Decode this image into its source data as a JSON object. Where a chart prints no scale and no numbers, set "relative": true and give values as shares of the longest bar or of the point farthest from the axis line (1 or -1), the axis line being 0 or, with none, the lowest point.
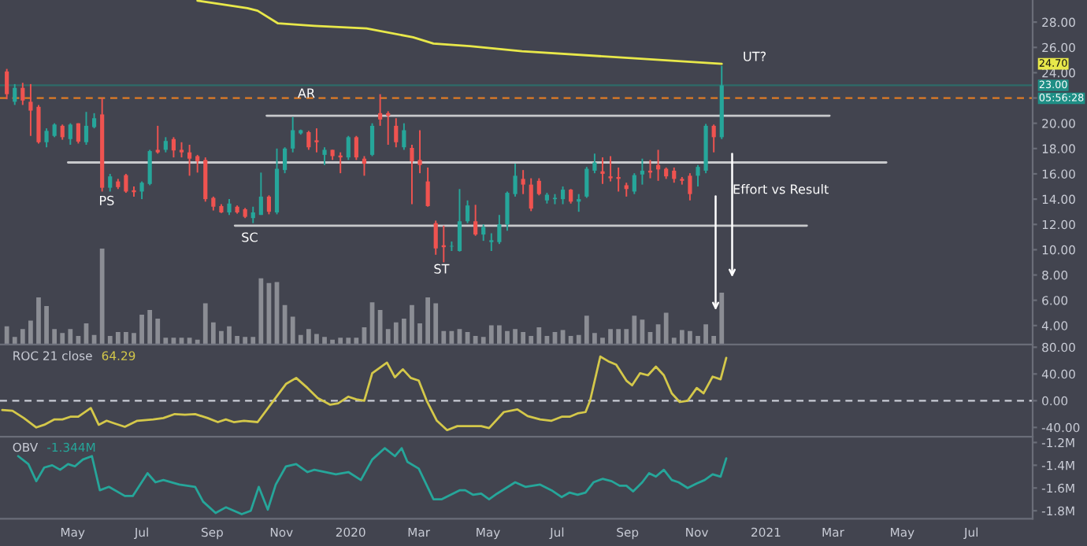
{
  "chart_data": [
    {
      "type": "candlestick",
      "x": [
        "2019-03-04",
        "2019-03-11",
        "2019-03-18",
        "2019-03-25",
        "2019-04-01",
        "2019-04-08",
        "2019-04-15",
        "2019-04-22",
        "2019-04-29",
        "2019-05-06",
        "2019-05-13",
        "2019-05-20",
        "2019-05-27",
        "2019-06-03",
        "2019-06-10",
        "2019-06-17",
        "2019-06-24",
        "2019-07-01",
        "2019-07-08",
        "2019-07-15",
        "2019-07-22",
        "2019-07-29",
        "2019-08-05",
        "2019-08-12",
        "2019-08-19",
        "2019-08-26",
        "2019-09-02",
        "2019-09-09",
        "2019-09-16",
        "2019-09-23",
        "2019-09-30",
        "2019-10-07",
        "2019-10-14",
        "2019-10-21",
        "2019-10-28",
        "2019-11-04",
        "2019-11-11",
        "2019-11-18",
        "2019-11-25",
        "2019-12-02",
        "2019-12-09",
        "2019-12-16",
        "2019-12-23",
        "2019-12-30",
        "2020-01-06",
        "2020-01-13",
        "2020-01-20",
        "2020-01-27",
        "2020-02-03",
        "2020-02-10",
        "2020-02-17",
        "2020-02-24",
        "2020-03-02",
        "2020-03-09",
        "2020-03-16",
        "2020-03-23",
        "2020-03-30",
        "2020-04-06",
        "2020-04-13",
        "2020-04-20",
        "2020-04-27",
        "2020-05-04",
        "2020-05-11",
        "2020-05-18",
        "2020-05-25",
        "2020-06-01",
        "2020-06-08",
        "2020-06-15",
        "2020-06-22",
        "2020-06-29",
        "2020-07-06",
        "2020-07-13",
        "2020-07-20",
        "2020-07-27",
        "2020-08-03",
        "2020-08-10",
        "2020-08-17",
        "2020-08-24",
        "2020-08-31",
        "2020-09-07",
        "2020-09-14",
        "2020-09-21",
        "2020-09-28",
        "2020-10-05",
        "2020-10-12",
        "2020-10-19",
        "2020-10-26",
        "2020-11-02",
        "2020-11-09",
        "2020-11-16",
        "2020-11-23"
      ],
      "ohlc": [
        [
          24.1,
          24.3,
          21.9,
          22.3
        ],
        [
          21.7,
          23.1,
          21.45,
          22.8
        ],
        [
          22.8,
          23.2,
          21.45,
          21.8
        ],
        [
          21.7,
          23.1,
          19.0,
          21.0
        ],
        [
          21.3,
          21.45,
          18.4,
          18.5
        ],
        [
          18.5,
          19.6,
          18.1,
          19.4
        ],
        [
          19.0,
          20.0,
          18.9,
          19.9
        ],
        [
          19.8,
          19.9,
          18.7,
          18.9
        ],
        [
          18.75,
          20.0,
          18.3,
          19.9
        ],
        [
          20.0,
          20.0,
          18.4,
          18.55
        ],
        [
          18.5,
          20.9,
          18.3,
          19.8
        ],
        [
          19.7,
          20.8,
          19.6,
          20.4
        ],
        [
          20.7,
          22.0,
          14.6,
          14.9
        ],
        [
          14.9,
          16.0,
          14.6,
          15.8
        ],
        [
          15.4,
          15.6,
          14.8,
          14.95
        ],
        [
          15.9,
          16.0,
          14.5,
          14.6
        ],
        [
          14.7,
          15.0,
          14.2,
          14.55
        ],
        [
          14.6,
          15.4,
          14.0,
          15.3
        ],
        [
          15.2,
          17.9,
          15.1,
          17.8
        ],
        [
          17.9,
          19.8,
          17.6,
          17.7
        ],
        [
          17.9,
          18.9,
          17.7,
          18.6
        ],
        [
          18.75,
          18.9,
          17.3,
          17.85
        ],
        [
          17.9,
          18.5,
          17.3,
          17.7
        ],
        [
          17.7,
          18.3,
          15.85,
          17.2
        ],
        [
          17.4,
          17.5,
          16.1,
          17.0
        ],
        [
          17.1,
          17.3,
          13.8,
          14.0
        ],
        [
          14.1,
          14.2,
          13.1,
          13.4
        ],
        [
          13.45,
          13.6,
          12.9,
          12.95
        ],
        [
          12.95,
          14.0,
          12.75,
          13.65
        ],
        [
          13.4,
          13.5,
          12.85,
          12.95
        ],
        [
          13.2,
          13.3,
          12.5,
          12.6
        ],
        [
          12.5,
          13.4,
          12.1,
          12.95
        ],
        [
          12.75,
          16.1,
          12.75,
          14.2
        ],
        [
          14.2,
          14.3,
          12.8,
          13.0
        ],
        [
          12.95,
          18.0,
          12.8,
          16.4
        ],
        [
          16.3,
          18.1,
          16.05,
          18.0
        ],
        [
          18.0,
          20.5,
          17.7,
          19.45
        ],
        [
          19.2,
          19.5,
          19.1,
          19.45
        ],
        [
          19.3,
          19.4,
          17.9,
          18.1
        ],
        [
          18.65,
          19.6,
          17.7,
          18.5
        ],
        [
          17.5,
          18.1,
          16.7,
          17.9
        ],
        [
          17.9,
          17.9,
          17.1,
          17.4
        ],
        [
          17.45,
          17.7,
          16.05,
          17.3
        ],
        [
          17.3,
          19.0,
          17.1,
          18.9
        ],
        [
          18.9,
          19.0,
          17.1,
          17.3
        ],
        [
          17.2,
          17.4,
          15.85,
          16.8
        ],
        [
          17.5,
          20.0,
          17.4,
          19.8
        ],
        [
          20.8,
          22.3,
          19.8,
          20.3
        ],
        [
          20.8,
          20.95,
          18.3,
          20.6
        ],
        [
          19.8,
          20.4,
          18.1,
          18.5
        ],
        [
          18.1,
          20.0,
          17.9,
          19.45
        ],
        [
          18.05,
          18.3,
          13.6,
          17.0
        ],
        [
          17.1,
          19.45,
          16.05,
          16.7
        ],
        [
          15.4,
          16.5,
          13.4,
          13.45
        ],
        [
          12.1,
          12.3,
          9.6,
          10.1
        ],
        [
          10.35,
          11.9,
          9.0,
          10.2
        ],
        [
          10.25,
          10.65,
          9.9,
          10.3
        ],
        [
          9.9,
          14.8,
          9.85,
          12.25
        ],
        [
          12.25,
          13.9,
          12.1,
          13.5
        ],
        [
          12.25,
          13.55,
          11.1,
          11.2
        ],
        [
          11.2,
          12.0,
          10.7,
          11.8
        ],
        [
          10.6,
          11.3,
          9.9,
          10.75
        ],
        [
          10.6,
          12.75,
          10.45,
          12.0
        ],
        [
          12.0,
          14.6,
          11.5,
          14.5
        ],
        [
          14.4,
          16.8,
          14.2,
          15.85
        ],
        [
          15.6,
          16.3,
          14.4,
          15.15
        ],
        [
          15.15,
          15.65,
          13.05,
          13.25
        ],
        [
          15.45,
          15.65,
          14.3,
          14.4
        ],
        [
          13.9,
          14.5,
          13.65,
          14.35
        ],
        [
          14.0,
          14.4,
          13.6,
          14.1
        ],
        [
          14.0,
          15.0,
          13.6,
          14.75
        ],
        [
          14.75,
          14.8,
          13.65,
          13.8
        ],
        [
          13.8,
          14.4,
          13.0,
          14.0
        ],
        [
          14.2,
          16.55,
          14.1,
          16.4
        ],
        [
          16.25,
          17.6,
          16.05,
          16.9
        ],
        [
          16.2,
          17.3,
          15.2,
          16.0
        ],
        [
          15.8,
          17.4,
          15.4,
          15.65
        ],
        [
          15.75,
          16.5,
          14.6,
          15.6
        ],
        [
          15.1,
          15.3,
          14.2,
          14.8
        ],
        [
          14.6,
          16.05,
          14.4,
          15.9
        ],
        [
          15.95,
          17.2,
          15.15,
          16.25
        ],
        [
          16.25,
          17.1,
          15.65,
          16.1
        ],
        [
          16.7,
          17.9,
          15.45,
          16.35
        ],
        [
          16.4,
          16.5,
          15.6,
          15.8
        ],
        [
          16.25,
          16.5,
          15.3,
          15.6
        ],
        [
          15.6,
          15.75,
          15.15,
          15.45
        ],
        [
          15.85,
          16.05,
          13.9,
          14.4
        ],
        [
          15.85,
          16.7,
          15.0,
          16.55
        ],
        [
          16.25,
          19.95,
          16.05,
          19.8
        ],
        [
          19.8,
          19.9,
          17.7,
          18.9
        ],
        [
          18.9,
          24.55,
          18.75,
          23.0
        ]
      ],
      "series": [
        {
          "type": "line",
          "color": "#e8e84a",
          "x": [
            "2019-08-19",
            "2019-10-02",
            "2019-10-11",
            "2019-10-29",
            "2019-11-30",
            "2020-01-15",
            "2020-02-25",
            "2020-03-14",
            "2020-04-15",
            "2020-05-31",
            "2020-11-23"
          ],
          "values": [
            29.7,
            29.1,
            28.9,
            27.9,
            27.7,
            27.5,
            26.8,
            26.3,
            26.1,
            25.7,
            24.7
          ]
        },
        {
          "type": "line",
          "color": "#c8c9cc",
          "x": [
            "2019-10-19",
            "2021-02-26"
          ],
          "values": [
            20.6,
            20.6
          ]
        },
        {
          "type": "line",
          "color": "#c8c9cc",
          "x": [
            "2019-04-27",
            "2021-04-17"
          ],
          "values": [
            16.9,
            16.9
          ]
        },
        {
          "type": "line",
          "color": "#c8c9cc",
          "x": [
            "2019-09-21",
            "2021-02-06"
          ],
          "values": [
            11.9,
            11.9
          ]
        }
      ],
      "ref_lines": [
        {
          "axis": "y",
          "value": 23.0,
          "label": "23.00",
          "color": "#2e6b68",
          "line_style": "solid"
        },
        {
          "axis": "y",
          "value": 22.0,
          "color": "#e07b24",
          "line_style": "dashed"
        }
      ],
      "annotations": [
        {
          "text": "AR",
          "x": "2019-11-23",
          "y": 22.3
        },
        "PS",
        "SC",
        "ST",
        "UT?",
        "Effort vs Result",
        "05:56:28",
        "24.70"
      ],
      "xlim": [
        "2019-02-26",
        "2021-08-24"
      ],
      "ylim": [
        2.5,
        29.75
      ],
      "yticks": [
        {
          "value": 4,
          "label": "4.00"
        },
        {
          "value": 6,
          "label": "6.00"
        },
        {
          "value": 8,
          "label": "8.00"
        },
        {
          "value": 10,
          "label": "10.00"
        },
        {
          "value": 12,
          "label": "12.00"
        },
        {
          "value": 14,
          "label": "14.00"
        },
        {
          "value": 16,
          "label": "16.00"
        },
        {
          "value": 18,
          "label": "18.00"
        },
        {
          "value": 20,
          "label": "20.00"
        },
        {
          "value": 22,
          "label": null
        },
        {
          "value": 24,
          "label": "24.00"
        },
        {
          "value": 26,
          "label": "26.00"
        },
        {
          "value": 28,
          "label": "28.00"
        }
      ],
      "tick_labels": "y"
    },
    {
      "type": "bar",
      "relative": true,
      "color": "#8b8d94",
      "tick_labels": false,
      "xlim": [
        "2019-02-26",
        "2021-08-24"
      ],
      "x": [
        "2019-03-04",
        "2019-03-11",
        "2019-03-18",
        "2019-03-25",
        "2019-04-01",
        "2019-04-08",
        "2019-04-15",
        "2019-04-22",
        "2019-04-29",
        "2019-05-06",
        "2019-05-13",
        "2019-05-20",
        "2019-05-27",
        "2019-06-03",
        "2019-06-10",
        "2019-06-17",
        "2019-06-24",
        "2019-07-01",
        "2019-07-08",
        "2019-07-15",
        "2019-07-22",
        "2019-07-29",
        "2019-08-05",
        "2019-08-12",
        "2019-08-19",
        "2019-08-26",
        "2019-09-02",
        "2019-09-09",
        "2019-09-16",
        "2019-09-23",
        "2019-09-30",
        "2019-10-07",
        "2019-10-14",
        "2019-10-21",
        "2019-10-28",
        "2019-11-04",
        "2019-11-11",
        "2019-11-18",
        "2019-11-25",
        "2019-12-02",
        "2019-12-09",
        "2019-12-16",
        "2019-12-23",
        "2019-12-30",
        "2020-01-06",
        "2020-01-13",
        "2020-01-20",
        "2020-01-27",
        "2020-02-03",
        "2020-02-10",
        "2020-02-17",
        "2020-02-24",
        "2020-03-02",
        "2020-03-09",
        "2020-03-16",
        "2020-03-23",
        "2020-03-30",
        "2020-04-06",
        "2020-04-13",
        "2020-04-20",
        "2020-04-27",
        "2020-05-04",
        "2020-05-11",
        "2020-05-18",
        "2020-05-25",
        "2020-06-01",
        "2020-06-08",
        "2020-06-15",
        "2020-06-22",
        "2020-06-29",
        "2020-07-06",
        "2020-07-13",
        "2020-07-20",
        "2020-07-27",
        "2020-08-03",
        "2020-08-10",
        "2020-08-17",
        "2020-08-24",
        "2020-08-31",
        "2020-09-07",
        "2020-09-14",
        "2020-09-21",
        "2020-09-28",
        "2020-10-05",
        "2020-10-12",
        "2020-10-19",
        "2020-10-26",
        "2020-11-02",
        "2020-11-09",
        "2020-11-16",
        "2020-11-23"
      ],
      "values": [
        0.19,
        0.08,
        0.16,
        0.25,
        0.49,
        0.4,
        0.16,
        0.12,
        0.16,
        0.09,
        0.22,
        0.1,
        1,
        0.09,
        0.13,
        0.13,
        0.12,
        0.31,
        0.36,
        0.27,
        0.07,
        0.07,
        0.07,
        0.07,
        0.05,
        0.43,
        0.23,
        0.14,
        0.19,
        0.09,
        0.08,
        0.08,
        0.69,
        0.64,
        0.65,
        0.41,
        0.29,
        0.1,
        0.16,
        0.11,
        0.08,
        0.05,
        0.07,
        0.07,
        0.07,
        0.18,
        0.44,
        0.36,
        0.16,
        0.23,
        0.27,
        0.41,
        0.22,
        0.49,
        0.43,
        0.14,
        0.14,
        0.16,
        0.13,
        0.09,
        0.08,
        0.2,
        0.2,
        0.14,
        0.16,
        0.13,
        0.09,
        0.18,
        0.09,
        0.13,
        0.15,
        0.09,
        0.1,
        0.3,
        0.12,
        0.07,
        0.16,
        0.16,
        0.16,
        0.3,
        0.26,
        0.13,
        0.21,
        0.33,
        0.07,
        0.15,
        0.14,
        0.09,
        0.21,
        0.09,
        0.54
      ]
    },
    {
      "type": "line",
      "title": "ROC 21 close",
      "annotations": [
        "64.29"
      ],
      "series": [
        {
          "color": "#d4c84a",
          "x": [
            "2019-02-28",
            "2019-03-09",
            "2019-03-19",
            "2019-03-30",
            "2019-04-06",
            "2019-04-15",
            "2019-04-22",
            "2019-04-29",
            "2019-05-06",
            "2019-05-17",
            "2019-05-24",
            "2019-05-31",
            "2019-06-07",
            "2019-06-16",
            "2019-06-27",
            "2019-07-11",
            "2019-07-20",
            "2019-07-30",
            "2019-08-08",
            "2019-08-17",
            "2019-08-28",
            "2019-09-06",
            "2019-09-13",
            "2019-09-20",
            "2019-09-29",
            "2019-10-11",
            "2019-10-25",
            "2019-11-05",
            "2019-11-14",
            "2019-11-24",
            "2019-12-03",
            "2019-12-14",
            "2019-12-21",
            "2019-12-30",
            "2020-01-06",
            "2020-01-13",
            "2020-01-20",
            "2020-02-02",
            "2020-02-09",
            "2020-02-16",
            "2020-02-23",
            "2020-03-01",
            "2020-03-08",
            "2020-03-17",
            "2020-03-26",
            "2020-04-04",
            "2020-04-15",
            "2020-04-25",
            "2020-05-02",
            "2020-05-15",
            "2020-05-27",
            "2020-06-05",
            "2020-06-16",
            "2020-06-26",
            "2020-07-05",
            "2020-07-12",
            "2020-07-19",
            "2020-07-26",
            "2020-07-30",
            "2020-08-08",
            "2020-08-15",
            "2020-08-22",
            "2020-08-31",
            "2020-09-05",
            "2020-09-12",
            "2020-09-19",
            "2020-09-26",
            "2020-10-03",
            "2020-10-10",
            "2020-10-17",
            "2020-10-24",
            "2020-11-01",
            "2020-11-07",
            "2020-11-15",
            "2020-11-22",
            "2020-11-27"
          ],
          "values": [
            -14,
            -15,
            -26,
            -40,
            -36,
            -28,
            -28,
            -24,
            -24,
            -11,
            -36,
            -30,
            -34,
            -39,
            -30,
            -28,
            -26,
            -20,
            -21,
            -20,
            -26,
            -32,
            -28,
            -32,
            -30,
            -32,
            0,
            25,
            34,
            19,
            4,
            -6,
            -4,
            6,
            2,
            0,
            41,
            57,
            35,
            47,
            34,
            30,
            0,
            -30,
            -44,
            -38,
            -38,
            -38,
            -41,
            -17,
            -13,
            -23,
            -28,
            -30,
            -24,
            -24,
            -19,
            -17,
            0,
            66,
            59,
            54,
            30,
            23,
            41,
            38,
            51,
            38,
            11,
            -2,
            0,
            19,
            11,
            36,
            32,
            64
          ]
        }
      ],
      "ref_lines": [
        {
          "axis": "y",
          "value": 0,
          "color": "#c9ccd6",
          "line_style": "dashed"
        }
      ],
      "xlim": [
        "2019-02-26",
        "2021-08-24"
      ],
      "ylim": [
        -54,
        84
      ],
      "yticks": [
        {
          "value": 80,
          "label": "80.00"
        },
        {
          "value": 40,
          "label": "40.00"
        },
        {
          "value": 0,
          "label": "0.00"
        },
        {
          "value": -40,
          "label": "-40.00"
        }
      ],
      "tick_labels": "y"
    },
    {
      "type": "line",
      "title": "OBV",
      "annotations": [
        "-1.344M"
      ],
      "series": [
        {
          "color": "#26a69a",
          "x": [
            "2019-03-14",
            "2019-03-23",
            "2019-03-30",
            "2019-04-06",
            "2019-04-13",
            "2019-04-20",
            "2019-04-27",
            "2019-05-03",
            "2019-05-10",
            "2019-05-18",
            "2019-05-25",
            "2019-06-02",
            "2019-06-16",
            "2019-06-23",
            "2019-07-06",
            "2019-07-13",
            "2019-07-20",
            "2019-08-03",
            "2019-08-17",
            "2019-08-24",
            "2019-09-04",
            "2019-09-13",
            "2019-09-27",
            "2019-10-05",
            "2019-10-12",
            "2019-10-20",
            "2019-10-27",
            "2019-11-05",
            "2019-11-14",
            "2019-11-24",
            "2019-11-30",
            "2019-12-19",
            "2019-12-30",
            "2020-01-10",
            "2020-01-20",
            "2020-01-31",
            "2020-02-09",
            "2020-02-15",
            "2020-02-20",
            "2020-03-01",
            "2020-03-14",
            "2020-03-21",
            "2020-04-06",
            "2020-04-11",
            "2020-04-18",
            "2020-04-25",
            "2020-05-02",
            "2020-05-09",
            "2020-05-25",
            "2020-06-03",
            "2020-06-16",
            "2020-06-26",
            "2020-07-05",
            "2020-07-12",
            "2020-07-19",
            "2020-07-26",
            "2020-08-02",
            "2020-08-10",
            "2020-08-18",
            "2020-08-25",
            "2020-08-31",
            "2020-09-06",
            "2020-09-14",
            "2020-09-20",
            "2020-09-26",
            "2020-10-03",
            "2020-10-10",
            "2020-10-16",
            "2020-10-24",
            "2020-11-01",
            "2020-11-08",
            "2020-11-15",
            "2020-11-22",
            "2020-11-27"
          ],
          "values": [
            -1.32,
            -1.39,
            -1.54,
            -1.42,
            -1.4,
            -1.44,
            -1.39,
            -1.41,
            -1.35,
            -1.32,
            -1.62,
            -1.59,
            -1.67,
            -1.67,
            -1.47,
            -1.55,
            -1.53,
            -1.57,
            -1.59,
            -1.72,
            -1.82,
            -1.77,
            -1.83,
            -1.8,
            -1.59,
            -1.79,
            -1.57,
            -1.41,
            -1.39,
            -1.46,
            -1.44,
            -1.48,
            -1.46,
            -1.53,
            -1.35,
            -1.25,
            -1.32,
            -1.25,
            -1.37,
            -1.43,
            -1.7,
            -1.7,
            -1.62,
            -1.62,
            -1.66,
            -1.65,
            -1.7,
            -1.65,
            -1.55,
            -1.59,
            -1.57,
            -1.62,
            -1.68,
            -1.64,
            -1.66,
            -1.64,
            -1.55,
            -1.52,
            -1.54,
            -1.58,
            -1.58,
            -1.63,
            -1.55,
            -1.47,
            -1.5,
            -1.44,
            -1.53,
            -1.55,
            -1.6,
            -1.56,
            -1.53,
            -1.48,
            -1.5,
            -1.34
          ]
        }
      ],
      "xlim": [
        "2019-02-26",
        "2021-08-24"
      ],
      "xticks": [
        {
          "value": "2019-05",
          "label": "May"
        },
        {
          "value": "2019-07",
          "label": "Jul"
        },
        {
          "value": "2019-09",
          "label": "Sep"
        },
        {
          "value": "2019-11",
          "label": "Nov"
        },
        {
          "value": "2020-01",
          "label": "2020"
        },
        {
          "value": "2020-03",
          "label": "Mar"
        },
        {
          "value": "2020-05",
          "label": "May"
        },
        {
          "value": "2020-07",
          "label": "Jul"
        },
        {
          "value": "2020-09",
          "label": "Sep"
        },
        {
          "value": "2020-11",
          "label": "Nov"
        },
        {
          "value": "2021-01",
          "label": "2021"
        },
        {
          "value": "2021-03",
          "label": "Mar"
        },
        {
          "value": "2021-05",
          "label": "May"
        },
        {
          "value": "2021-07",
          "label": "Jul"
        }
      ],
      "ylim": [
        -1.87,
        -1.15
      ],
      "yticks": [
        {
          "value": -1.2,
          "label": "-1.2M"
        },
        {
          "value": -1.4,
          "label": "-1.4M"
        },
        {
          "value": -1.6,
          "label": "-1.6M"
        },
        {
          "value": -1.8,
          "label": "-1.8M"
        }
      ]
    }
  ]
}
